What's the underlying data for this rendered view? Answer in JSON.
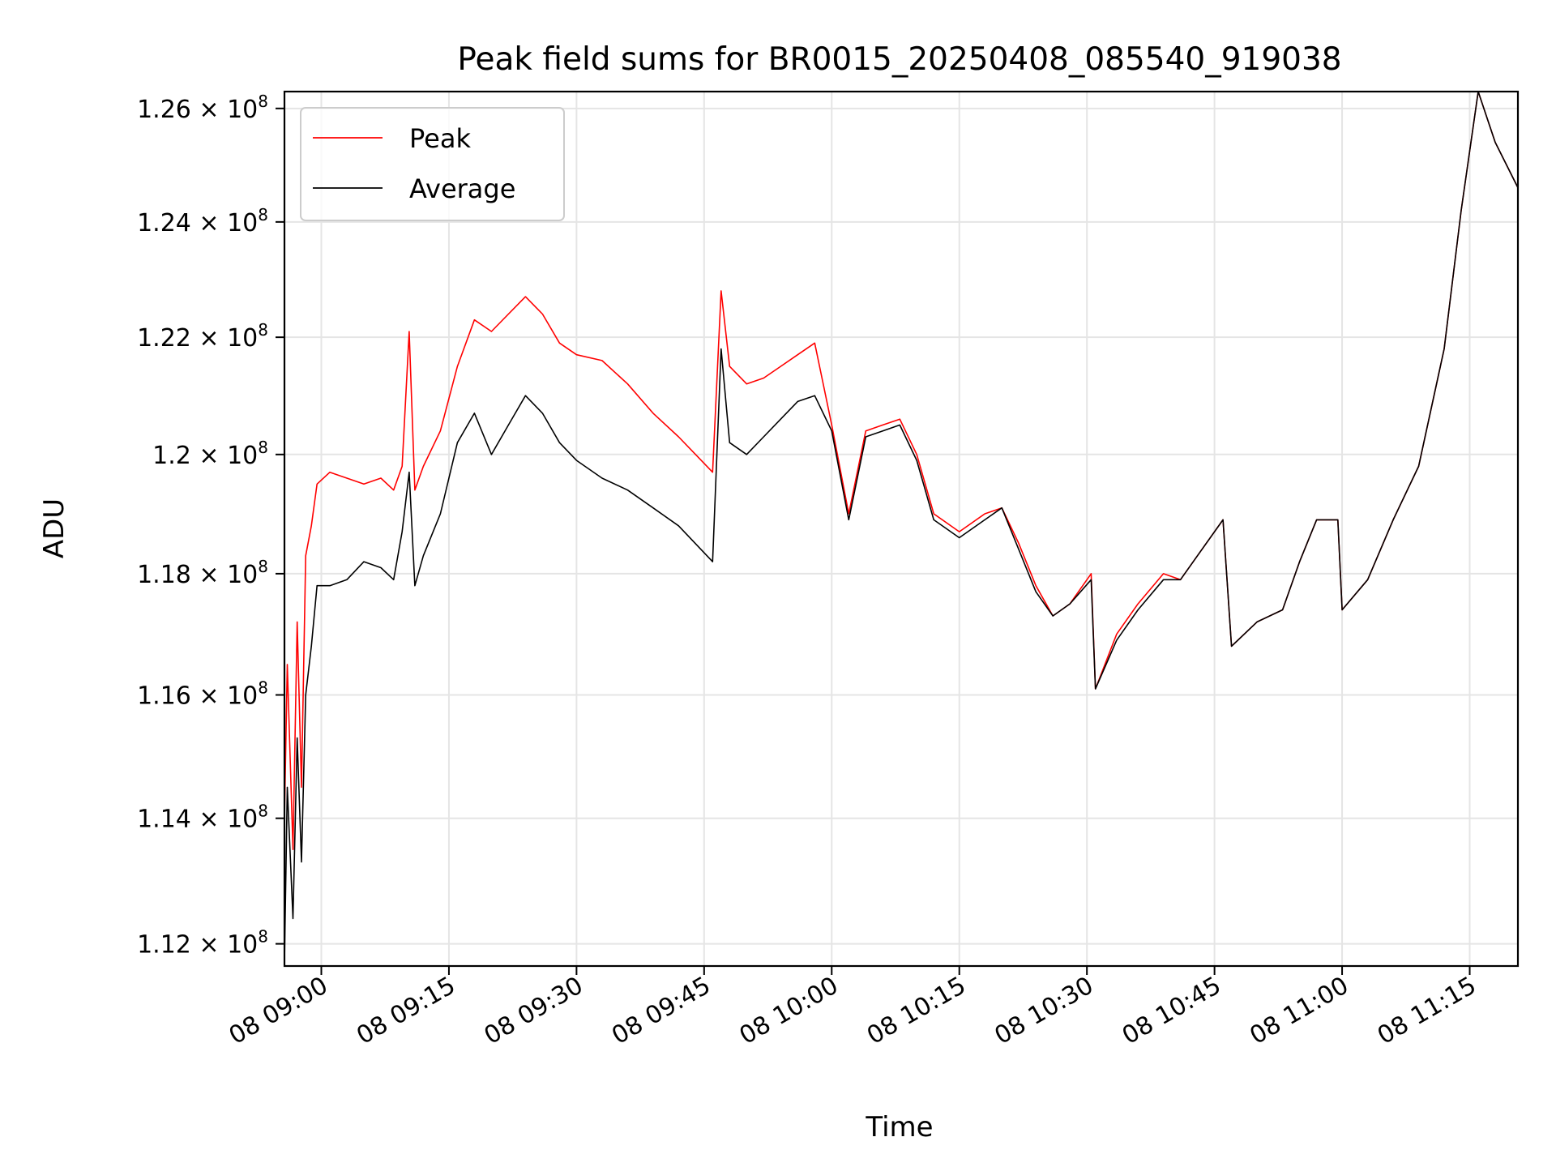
{
  "chart_data": {
    "type": "line",
    "title": "Peak field sums for BR0015_20250408_085540_919038",
    "xlabel": "Time",
    "ylabel": "ADU",
    "x_ticks": [
      "08 09:00",
      "08 09:15",
      "08 09:30",
      "08 09:45",
      "08 10:00",
      "08 10:15",
      "08 10:30",
      "08 10:45",
      "08 11:00",
      "08 11:15"
    ],
    "xlim": [
      "2025-04-08T08:55:40",
      "2025-04-08T11:20:40"
    ],
    "y_ticks": [
      {
        "mant": "1.12",
        "exp": "8",
        "value": 112000000
      },
      {
        "mant": "1.14",
        "exp": "8",
        "value": 114000000
      },
      {
        "mant": "1.16",
        "exp": "8",
        "value": 116000000
      },
      {
        "mant": "1.18",
        "exp": "8",
        "value": 118000000
      },
      {
        "mant": "1.2",
        "exp": "8",
        "value": 120000000
      },
      {
        "mant": "1.22",
        "exp": "8",
        "value": 122000000
      },
      {
        "mant": "1.24",
        "exp": "8",
        "value": 124000000
      },
      {
        "mant": "1.26",
        "exp": "8",
        "value": 126000000
      }
    ],
    "ylim": [
      111650000,
      126300000
    ],
    "y_scale": "log",
    "grid": true,
    "legend_position": "top-left",
    "series": [
      {
        "name": "Peak",
        "color": "#ff0000",
        "points": [
          [
            "08:55:40",
            114000000
          ],
          [
            "08:56:00",
            116500000
          ],
          [
            "08:56:40",
            113500000
          ],
          [
            "08:57:10",
            117200000
          ],
          [
            "08:57:40",
            114500000
          ],
          [
            "08:58:10",
            118300000
          ],
          [
            "08:58:50",
            118800000
          ],
          [
            "08:59:30",
            119500000
          ],
          [
            "09:01:00",
            119700000
          ],
          [
            "09:03:00",
            119600000
          ],
          [
            "09:05:00",
            119500000
          ],
          [
            "09:07:00",
            119600000
          ],
          [
            "09:08:30",
            119400000
          ],
          [
            "09:09:30",
            119800000
          ],
          [
            "09:10:20",
            122100000
          ],
          [
            "09:11:00",
            119400000
          ],
          [
            "09:12:00",
            119800000
          ],
          [
            "09:14:00",
            120400000
          ],
          [
            "09:16:00",
            121500000
          ],
          [
            "09:18:00",
            122300000
          ],
          [
            "09:20:00",
            122100000
          ],
          [
            "09:22:00",
            122400000
          ],
          [
            "09:24:00",
            122700000
          ],
          [
            "09:26:00",
            122400000
          ],
          [
            "09:28:00",
            121900000
          ],
          [
            "09:30:00",
            121700000
          ],
          [
            "09:33:00",
            121600000
          ],
          [
            "09:36:00",
            121200000
          ],
          [
            "09:39:00",
            120700000
          ],
          [
            "09:42:00",
            120300000
          ],
          [
            "09:44:00",
            120000000
          ],
          [
            "09:46:00",
            119700000
          ],
          [
            "09:47:00",
            122800000
          ],
          [
            "09:48:00",
            121500000
          ],
          [
            "09:50:00",
            121200000
          ],
          [
            "09:52:00",
            121300000
          ],
          [
            "09:54:00",
            121500000
          ],
          [
            "09:56:00",
            121700000
          ],
          [
            "09:58:00",
            121900000
          ],
          [
            "10:00:00",
            120500000
          ],
          [
            "10:02:00",
            119000000
          ],
          [
            "10:04:00",
            120400000
          ],
          [
            "10:06:00",
            120500000
          ],
          [
            "10:08:00",
            120600000
          ],
          [
            "10:10:00",
            120000000
          ],
          [
            "10:12:00",
            119000000
          ],
          [
            "10:15:00",
            118700000
          ],
          [
            "10:18:00",
            119000000
          ],
          [
            "10:20:00",
            119100000
          ],
          [
            "10:22:00",
            118500000
          ],
          [
            "10:24:00",
            117800000
          ],
          [
            "10:26:00",
            117300000
          ],
          [
            "10:28:00",
            117500000
          ],
          [
            "10:30:30",
            118000000
          ],
          [
            "10:31:00",
            116100000
          ],
          [
            "10:33:30",
            117000000
          ],
          [
            "10:36:00",
            117500000
          ],
          [
            "10:39:00",
            118000000
          ],
          [
            "10:41:00",
            117900000
          ],
          [
            "10:43:00",
            118300000
          ],
          [
            "10:46:00",
            118900000
          ],
          [
            "10:47:00",
            116800000
          ],
          [
            "10:50:00",
            117200000
          ],
          [
            "10:53:00",
            117400000
          ],
          [
            "10:55:00",
            118200000
          ],
          [
            "10:57:00",
            118900000
          ],
          [
            "10:59:30",
            118900000
          ],
          [
            "11:00:00",
            117400000
          ],
          [
            "11:03:00",
            117900000
          ],
          [
            "11:06:00",
            118900000
          ],
          [
            "11:09:00",
            119800000
          ],
          [
            "11:12:00",
            121800000
          ],
          [
            "11:14:00",
            124200000
          ],
          [
            "11:16:00",
            126300000
          ],
          [
            "11:18:00",
            125400000
          ],
          [
            "11:20:40",
            124600000
          ]
        ]
      },
      {
        "name": "Average",
        "color": "#000000",
        "points": [
          [
            "08:55:40",
            111700000
          ],
          [
            "08:56:00",
            114500000
          ],
          [
            "08:56:40",
            112400000
          ],
          [
            "08:57:10",
            115300000
          ],
          [
            "08:57:40",
            113300000
          ],
          [
            "08:58:10",
            116000000
          ],
          [
            "08:58:50",
            116800000
          ],
          [
            "08:59:30",
            117800000
          ],
          [
            "09:01:00",
            117800000
          ],
          [
            "09:03:00",
            117900000
          ],
          [
            "09:05:00",
            118200000
          ],
          [
            "09:07:00",
            118100000
          ],
          [
            "09:08:30",
            117900000
          ],
          [
            "09:09:30",
            118700000
          ],
          [
            "09:10:20",
            119700000
          ],
          [
            "09:11:00",
            117800000
          ],
          [
            "09:12:00",
            118300000
          ],
          [
            "09:14:00",
            119000000
          ],
          [
            "09:16:00",
            120200000
          ],
          [
            "09:18:00",
            120700000
          ],
          [
            "09:20:00",
            120000000
          ],
          [
            "09:22:00",
            120500000
          ],
          [
            "09:24:00",
            121000000
          ],
          [
            "09:26:00",
            120700000
          ],
          [
            "09:28:00",
            120200000
          ],
          [
            "09:30:00",
            119900000
          ],
          [
            "09:33:00",
            119600000
          ],
          [
            "09:36:00",
            119400000
          ],
          [
            "09:39:00",
            119100000
          ],
          [
            "09:42:00",
            118800000
          ],
          [
            "09:44:00",
            118500000
          ],
          [
            "09:46:00",
            118200000
          ],
          [
            "09:47:00",
            121800000
          ],
          [
            "09:48:00",
            120200000
          ],
          [
            "09:50:00",
            120000000
          ],
          [
            "09:52:00",
            120300000
          ],
          [
            "09:54:00",
            120600000
          ],
          [
            "09:56:00",
            120900000
          ],
          [
            "09:58:00",
            121000000
          ],
          [
            "10:00:00",
            120400000
          ],
          [
            "10:02:00",
            118900000
          ],
          [
            "10:04:00",
            120300000
          ],
          [
            "10:06:00",
            120400000
          ],
          [
            "10:08:00",
            120500000
          ],
          [
            "10:10:00",
            119900000
          ],
          [
            "10:12:00",
            118900000
          ],
          [
            "10:15:00",
            118600000
          ],
          [
            "10:18:00",
            118900000
          ],
          [
            "10:20:00",
            119100000
          ],
          [
            "10:22:00",
            118400000
          ],
          [
            "10:24:00",
            117700000
          ],
          [
            "10:26:00",
            117300000
          ],
          [
            "10:28:00",
            117500000
          ],
          [
            "10:30:30",
            117900000
          ],
          [
            "10:31:00",
            116100000
          ],
          [
            "10:33:30",
            116900000
          ],
          [
            "10:36:00",
            117400000
          ],
          [
            "10:39:00",
            117900000
          ],
          [
            "10:41:00",
            117900000
          ],
          [
            "10:43:00",
            118300000
          ],
          [
            "10:46:00",
            118900000
          ],
          [
            "10:47:00",
            116800000
          ],
          [
            "10:50:00",
            117200000
          ],
          [
            "10:53:00",
            117400000
          ],
          [
            "10:55:00",
            118200000
          ],
          [
            "10:57:00",
            118900000
          ],
          [
            "10:59:30",
            118900000
          ],
          [
            "11:00:00",
            117400000
          ],
          [
            "11:03:00",
            117900000
          ],
          [
            "11:06:00",
            118900000
          ],
          [
            "11:09:00",
            119800000
          ],
          [
            "11:12:00",
            121800000
          ],
          [
            "11:14:00",
            124200000
          ],
          [
            "11:16:00",
            126300000
          ],
          [
            "11:18:00",
            125400000
          ],
          [
            "11:20:40",
            124600000
          ]
        ]
      }
    ]
  }
}
